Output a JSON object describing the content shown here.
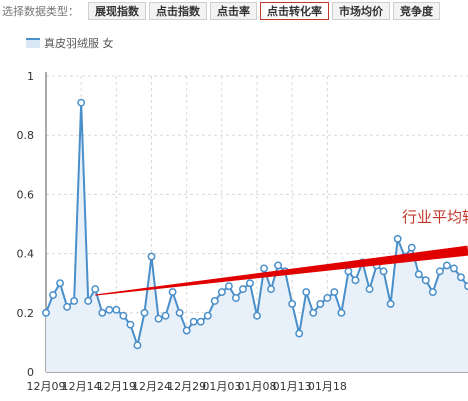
{
  "toolbar": {
    "label": "选择数据类型：",
    "tabs": [
      "展现指数",
      "点击指数",
      "点击率",
      "点击转化率",
      "市场均价",
      "竞争度"
    ],
    "active_index": 3
  },
  "legend": {
    "label": "真皮羽绒服 女"
  },
  "annotation": {
    "text": "行业平均转"
  },
  "colors": {
    "series": "#4a8fc9",
    "area": "#e8f0fa",
    "trend": "#e00000",
    "annotation": "#c0392b",
    "grid": "#d8d8d8"
  },
  "chart_data": {
    "type": "line",
    "title": "",
    "xlabel": "",
    "ylabel": "",
    "ylim": [
      0,
      1
    ],
    "y_ticks": [
      "0",
      "0.2",
      "0.4",
      "0.6",
      "0.8",
      "1"
    ],
    "x_tick_labels": [
      "12月09",
      "12月14",
      "12月19",
      "12月24",
      "12月29",
      "01月03",
      "01月08",
      "01月13",
      "01月18"
    ],
    "grid": true,
    "series": [
      {
        "name": "真皮羽绒服 女",
        "values": [
          0.2,
          0.26,
          0.3,
          0.22,
          0.24,
          0.91,
          0.24,
          0.28,
          0.2,
          0.21,
          0.21,
          0.19,
          0.16,
          0.09,
          0.2,
          0.39,
          0.18,
          0.19,
          0.27,
          0.2,
          0.14,
          0.17,
          0.17,
          0.19,
          0.24,
          0.27,
          0.29,
          0.25,
          0.28,
          0.3,
          0.19,
          0.35,
          0.28,
          0.36,
          0.34,
          0.23,
          0.13,
          0.27,
          0.2,
          0.23,
          0.25,
          0.27,
          0.2,
          0.34,
          0.31,
          0.37,
          0.28,
          0.36,
          0.34,
          0.23,
          0.45,
          0.39,
          0.42,
          0.33,
          0.31,
          0.27,
          0.34,
          0.36,
          0.35,
          0.32,
          0.29
        ]
      },
      {
        "name": "行业平均转",
        "values": [
          null,
          null,
          null,
          null,
          null,
          null,
          null,
          0.26,
          null,
          null,
          null,
          null,
          null,
          null,
          null,
          null,
          null,
          null,
          null,
          null,
          null,
          null,
          null,
          null,
          null,
          null,
          null,
          null,
          null,
          null,
          null,
          null,
          null,
          null,
          null,
          null,
          null,
          null,
          null,
          null,
          null,
          null,
          null,
          null,
          null,
          null,
          null,
          null,
          null,
          null,
          null,
          null,
          null,
          null,
          null,
          null,
          null,
          null,
          null,
          null,
          0.41
        ]
      }
    ]
  }
}
